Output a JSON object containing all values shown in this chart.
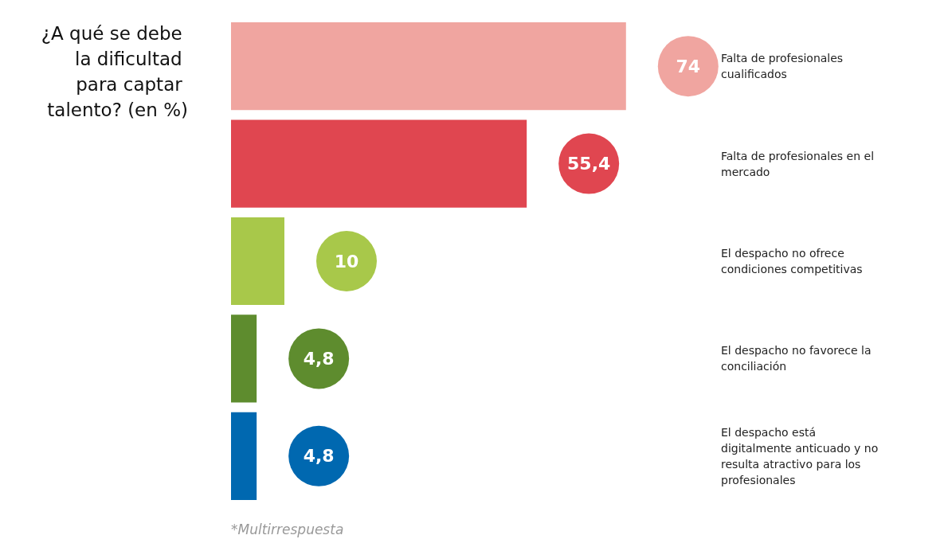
{
  "chart_data": {
    "type": "bar",
    "orientation": "horizontal",
    "title": "¿A qué se debe la dificultad para captar talento? (en %)",
    "categories": [
      "Falta de profesionales cualificados",
      "Falta de profesionales en el mercado",
      "El despacho no ofrece condiciones competitivas",
      "El despacho no favorece la conciliación",
      "El despacho está digitalmente anticuado y no resulta atractivo para los profesionales"
    ],
    "values": [
      74,
      55.4,
      10,
      4.8,
      4.8
    ],
    "value_labels": [
      "74",
      "55,4",
      "10",
      "4,8",
      "4,8"
    ],
    "colors": [
      "#f0a5a0",
      "#e04650",
      "#a8c84a",
      "#5e8c2e",
      "#0068b0"
    ],
    "tick_labels": "y",
    "annotations": [
      "*Multirrespuesta"
    ]
  }
}
